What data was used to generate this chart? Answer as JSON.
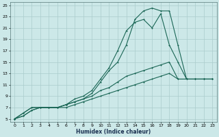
{
  "xlabel": "Humidex (Indice chaleur)",
  "bg_color": "#cce8e8",
  "line_color": "#1a6655",
  "grid_color": "#aacccc",
  "xlim": [
    -0.5,
    23.5
  ],
  "ylim": [
    4.5,
    25.5
  ],
  "xticks": [
    0,
    1,
    2,
    3,
    4,
    5,
    6,
    7,
    8,
    9,
    10,
    11,
    12,
    13,
    14,
    15,
    16,
    17,
    18,
    19,
    20,
    21,
    22,
    23
  ],
  "yticks": [
    5,
    7,
    9,
    11,
    13,
    15,
    17,
    19,
    21,
    23,
    25
  ],
  "line1_x": [
    0,
    1,
    2,
    3,
    4,
    5,
    6,
    7,
    8,
    9,
    10,
    11,
    12,
    13,
    14,
    15,
    16,
    17,
    18,
    19,
    20,
    21,
    22,
    23
  ],
  "line1_y": [
    5,
    6,
    7,
    7,
    7,
    7,
    7,
    7.5,
    8,
    8.5,
    9,
    9.5,
    10,
    10.5,
    11,
    11.5,
    12,
    12.5,
    13,
    12,
    12,
    12,
    12,
    12
  ],
  "line2_x": [
    0,
    1,
    2,
    3,
    4,
    5,
    6,
    7,
    8,
    9,
    10,
    11,
    12,
    13,
    14,
    15,
    16,
    17,
    18,
    19,
    20,
    21,
    22,
    23
  ],
  "line2_y": [
    5,
    6,
    7,
    7,
    7,
    7,
    7.5,
    8,
    8.5,
    9,
    10,
    10.5,
    11.5,
    12.5,
    13,
    13.5,
    14,
    14.5,
    15,
    12,
    12,
    12,
    12,
    12
  ],
  "line3_x": [
    0,
    1,
    2,
    3,
    4,
    5,
    6,
    7,
    8,
    9,
    10,
    11,
    12,
    13,
    14,
    15,
    16,
    17,
    18,
    19,
    20,
    21,
    22,
    23
  ],
  "line3_y": [
    5,
    5.5,
    6.5,
    7,
    7,
    7,
    7.5,
    8.5,
    9,
    10,
    12,
    14,
    17,
    20.5,
    22,
    22.5,
    21,
    23.5,
    18,
    15,
    12,
    12,
    12,
    12
  ],
  "line4_x": [
    0,
    1,
    2,
    3,
    4,
    5,
    6,
    7,
    8,
    9,
    10,
    11,
    12,
    13,
    14,
    15,
    16,
    17,
    18,
    19,
    20,
    21,
    22,
    23
  ],
  "line4_y": [
    5,
    5.5,
    6.5,
    7,
    7,
    7,
    7.5,
    8,
    8.5,
    9.5,
    11.5,
    13.5,
    15,
    18,
    22.5,
    24,
    24.5,
    24,
    24,
    18,
    12,
    12,
    12,
    12
  ]
}
